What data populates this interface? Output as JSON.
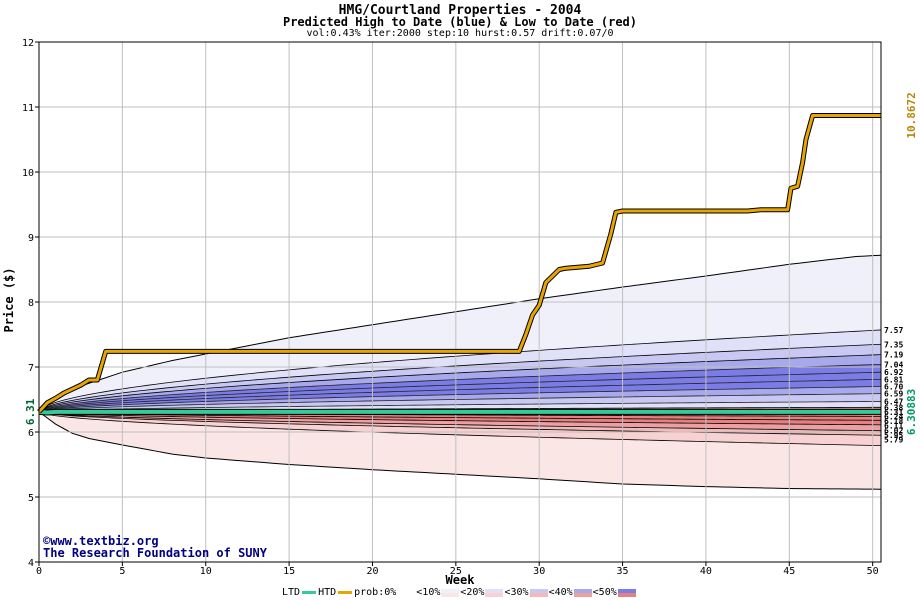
{
  "header": {
    "title": "HMG/Courtland Properties - 2004",
    "subtitle": "Predicted High to Date (blue) &  Low to Date (red)",
    "params": "vol:0.43% iter:2000 step:10 hurst:0.57 drift:0.07/0"
  },
  "credits": {
    "site": "©www.textbiz.org",
    "org": "The Research Foundation of SUNY"
  },
  "legend": {
    "ltd": "LTD",
    "htd": "HTD",
    "prob": "prob:0%",
    "b10": "<10%",
    "b20": "<20%",
    "b30": "<30%",
    "b40": "<40%",
    "b50": "<50%"
  },
  "colors": {
    "htd": "#e8a400",
    "ltd": "#33cc99",
    "blue_bands": [
      "#f0f0fb",
      "#e0e0f8",
      "#c8c8f2",
      "#a8a8ec",
      "#7c7ce6"
    ],
    "red_bands": [
      "#fbe6e6",
      "#f8d2d2",
      "#f2baba",
      "#eca0a0",
      "#e68080"
    ]
  },
  "chart_data": {
    "type": "line",
    "xlabel": "Week",
    "ylabel": "Price ($)",
    "xlim": [
      0,
      50.5
    ],
    "ylim": [
      4,
      12
    ],
    "xticks": [
      0,
      5,
      10,
      15,
      20,
      25,
      30,
      35,
      40,
      45,
      50
    ],
    "yticks": [
      4,
      5,
      6,
      7,
      8,
      9,
      10,
      11,
      12
    ],
    "start_price": "6.31",
    "start_price_value": 6.31,
    "htd_final_label": "10.8672",
    "ltd_final_label": "6.30883",
    "htd": {
      "name": "HTD",
      "x": [
        0,
        0.5,
        1,
        1.5,
        2,
        2.5,
        3,
        3.5,
        4,
        28.8,
        29.2,
        29.6,
        30,
        30.4,
        30.8,
        31.2,
        31.6,
        33,
        33.8,
        34.3,
        34.6,
        35,
        42.5,
        43.3,
        44.9,
        45.1,
        45.5,
        45.8,
        46,
        46.4,
        50.5
      ],
      "y": [
        6.31,
        6.45,
        6.52,
        6.6,
        6.66,
        6.72,
        6.8,
        6.8,
        7.24,
        7.24,
        7.5,
        7.8,
        7.95,
        8.3,
        8.4,
        8.5,
        8.52,
        8.55,
        8.6,
        9.05,
        9.38,
        9.4,
        9.4,
        9.42,
        9.42,
        9.75,
        9.78,
        10.15,
        10.5,
        10.87,
        10.87
      ]
    },
    "ltd": {
      "name": "LTD",
      "x": [
        0,
        0.5,
        1,
        50.5
      ],
      "y": [
        6.31,
        6.3,
        6.309,
        6.309
      ]
    },
    "upper_envelope": {
      "x": [
        0,
        1,
        2,
        3,
        5,
        8,
        10,
        12,
        15,
        20,
        25,
        30,
        35,
        40,
        45,
        49,
        50.5
      ],
      "y": [
        6.31,
        6.55,
        6.66,
        6.75,
        6.92,
        7.1,
        7.2,
        7.3,
        7.45,
        7.65,
        7.85,
        8.05,
        8.23,
        8.4,
        8.58,
        8.7,
        8.72
      ]
    },
    "lower_envelope": {
      "x": [
        0,
        1,
        2,
        3,
        5,
        8,
        10,
        15,
        20,
        25,
        30,
        35,
        40,
        45,
        50.5
      ],
      "y": [
        6.31,
        6.12,
        5.98,
        5.9,
        5.8,
        5.66,
        5.6,
        5.5,
        5.42,
        5.35,
        5.28,
        5.2,
        5.16,
        5.13,
        5.12
      ]
    },
    "upper_quantiles": [
      "7.57",
      "7.35",
      "7.19",
      "7.04",
      "6.92",
      "6.81",
      "6.70",
      "6.59",
      "6.47"
    ],
    "upper_quantile_values": [
      7.57,
      7.35,
      7.19,
      7.04,
      6.92,
      6.81,
      6.7,
      6.59,
      6.47
    ],
    "lower_quantiles": [
      "6.38",
      "6.31",
      "6.24",
      "6.18",
      "6.11",
      "6.02",
      "5.95",
      "5.79"
    ],
    "lower_quantile_values": [
      6.38,
      6.31,
      6.24,
      6.18,
      6.11,
      6.02,
      5.95,
      5.79
    ]
  }
}
